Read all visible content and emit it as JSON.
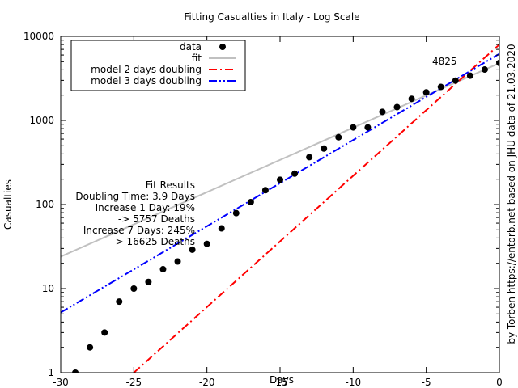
{
  "chart_data": {
    "type": "line",
    "title": "Fitting Casualties in Italy - Log Scale",
    "xlabel": "Days",
    "ylabel": "Casualties",
    "xlim": [
      -30,
      0
    ],
    "ylim": [
      1,
      10000
    ],
    "yscale": "log",
    "grid": false,
    "legend_position": "top-left",
    "x_ticks": [
      -30,
      -25,
      -20,
      -15,
      -10,
      -5,
      0
    ],
    "y_ticks": [
      1,
      10,
      100,
      1000,
      10000
    ],
    "side_note": "by Torben https://entorb.net based on JHU data of 21.03.2020",
    "annotation": {
      "text": "4825",
      "x": -3,
      "y": 4825
    },
    "fit_results": {
      "heading": "Fit Results",
      "lines": [
        "Doubling Time: 3.9 Days",
        "Increase 1 Day: 19%",
        "-> 5757 Deaths",
        "Increase 7 Days: 245%",
        "-> 16625 Deaths"
      ]
    },
    "series": [
      {
        "name": "data",
        "kind": "points",
        "color": "#000000",
        "x": [
          -29,
          -28,
          -27,
          -26,
          -25,
          -24,
          -23,
          -22,
          -21,
          -20,
          -19,
          -18,
          -17,
          -16,
          -15,
          -14,
          -13,
          -12,
          -11,
          -10,
          -9,
          -8,
          -7,
          -6,
          -5,
          -4,
          -3,
          -2,
          -1,
          0
        ],
        "y": [
          1,
          2,
          3,
          7,
          10,
          12,
          17,
          21,
          29,
          34,
          52,
          79,
          107,
          148,
          197,
          233,
          366,
          463,
          631,
          827,
          827,
          1266,
          1441,
          1809,
          2158,
          2503,
          2978,
          3405,
          4032,
          4825
        ]
      },
      {
        "name": "fit",
        "kind": "line",
        "color": "#c0c0c0",
        "dash": "solid",
        "x": [
          -30,
          0
        ],
        "y": [
          24,
          4800
        ]
      },
      {
        "name": "model 2 days doubling",
        "kind": "line",
        "color": "#ff0000",
        "dash": "dashdot",
        "x": [
          -25,
          0
        ],
        "y": [
          1,
          8000
        ]
      },
      {
        "name": "model 3 days doubling",
        "kind": "line",
        "color": "#0000ff",
        "dash": "dashdotdot",
        "x": [
          -30,
          0
        ],
        "y": [
          5.2,
          6200
        ]
      }
    ]
  }
}
